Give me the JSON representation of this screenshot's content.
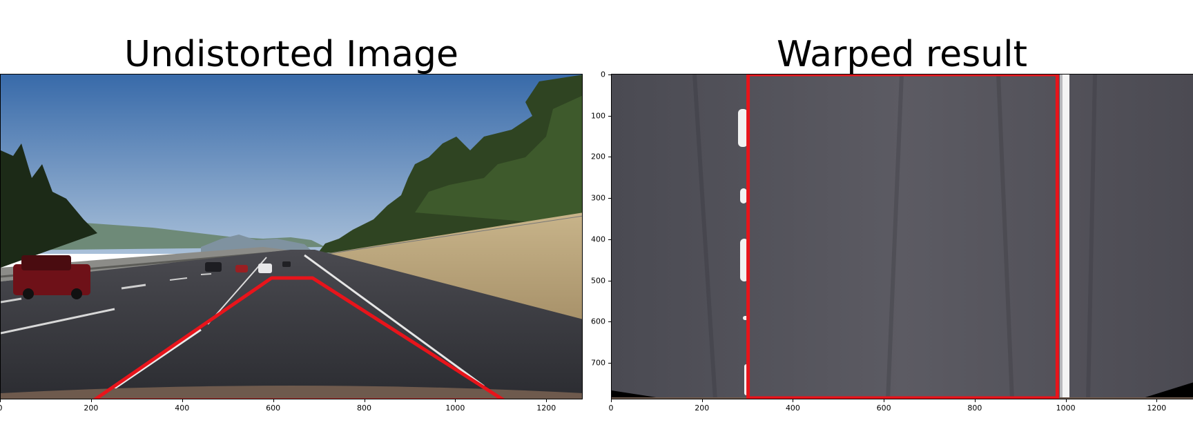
{
  "left_panel": {
    "title": "Undistorted Image",
    "x_ticks": [
      "0",
      "200",
      "400",
      "600",
      "800",
      "1000",
      "1200"
    ],
    "x_tick_values": [
      0,
      200,
      400,
      600,
      800,
      1000,
      1200
    ],
    "x_range": [
      0,
      1280
    ],
    "source_polygon": [
      [
        205,
        720
      ],
      [
        595,
        450
      ],
      [
        685,
        450
      ],
      [
        1105,
        720
      ]
    ]
  },
  "right_panel": {
    "title": "Warped result",
    "x_ticks": [
      "0",
      "200",
      "400",
      "600",
      "800",
      "1000",
      "1200"
    ],
    "x_tick_values": [
      0,
      200,
      400,
      600,
      800,
      1000,
      1200
    ],
    "y_ticks": [
      "0",
      "100",
      "200",
      "300",
      "400",
      "500",
      "600",
      "700"
    ],
    "y_tick_values": [
      0,
      100,
      200,
      300,
      400,
      500,
      600,
      700
    ],
    "x_range": [
      0,
      1280
    ],
    "y_range": [
      0,
      720
    ],
    "destination_rect": [
      [
        300,
        0
      ],
      [
        980,
        0
      ],
      [
        980,
        720
      ],
      [
        300,
        720
      ]
    ]
  },
  "colors": {
    "overlay": "#e8141b",
    "sky_top": "#3d6aa8",
    "sky_bottom": "#9fb8d4",
    "road": "#2f3035",
    "warped_road": "#55545c"
  }
}
